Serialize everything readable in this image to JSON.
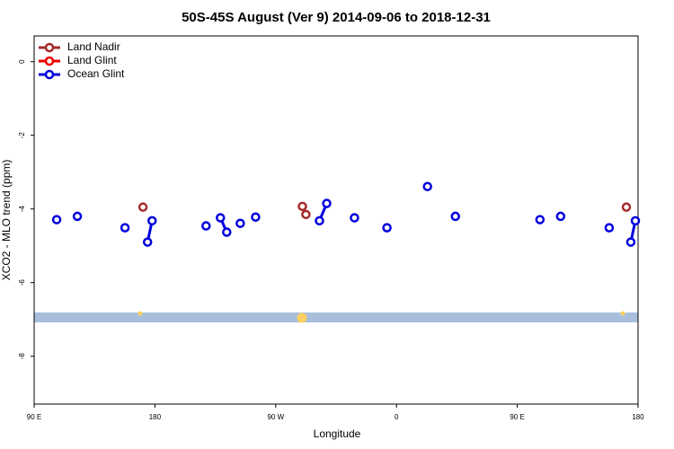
{
  "chart_data": {
    "type": "line",
    "title": "50S-45S August (Ver 9)   2014-09-06 to 2018-12-31",
    "x_label": "Longitude",
    "y_label": "XCO2 - MLO trend (ppm)",
    "xlim": [
      90,
      540
    ],
    "ylim": [
      -9.3,
      0.7
    ],
    "xticks": [
      {
        "value": 90,
        "label": "90 E"
      },
      {
        "value": 180,
        "label": "180"
      },
      {
        "value": 270,
        "label": "90 W"
      },
      {
        "value": 360,
        "label": "0"
      },
      {
        "value": 450,
        "label": "90 E"
      },
      {
        "value": 540,
        "label": "180"
      }
    ],
    "yticks": [
      0,
      -2,
      -4,
      -6,
      -8
    ],
    "legend": "top-left",
    "series": [
      {
        "name": "Land Nadir",
        "color": "#a52a2a",
        "x": [
          171.1,
          null,
          289.9,
          292.5,
          null,
          531.3
        ],
        "values": [
          -3.95,
          null,
          -3.93,
          -4.15,
          null,
          -3.95
        ]
      },
      {
        "name": "Land Glint",
        "color": "#ee0000",
        "x": [],
        "values": []
      },
      {
        "name": "Ocean Glint",
        "color": "#0000dd",
        "x": [
          106.8,
          null,
          122.2,
          null,
          157.7,
          null,
          174.5,
          177.9,
          null,
          218.1,
          null,
          228.8,
          233.5,
          null,
          243.6,
          null,
          255,
          null,
          302.6,
          308,
          null,
          328.7,
          null,
          352.9,
          null,
          383.1,
          null,
          403.9,
          null,
          466.9,
          null,
          482.3,
          null,
          518.5,
          null,
          534.6,
          538
        ],
        "values": [
          -4.29,
          null,
          -4.2,
          null,
          -4.51,
          null,
          -4.9,
          -4.32,
          null,
          -4.46,
          null,
          -4.24,
          -4.63,
          null,
          -4.39,
          null,
          -4.22,
          null,
          -4.32,
          -3.85,
          null,
          -4.24,
          null,
          -4.51,
          null,
          -3.39,
          null,
          -4.2,
          null,
          -4.29,
          null,
          -4.2,
          null,
          -4.51,
          null,
          -4.9,
          -4.32
        ]
      }
    ]
  }
}
